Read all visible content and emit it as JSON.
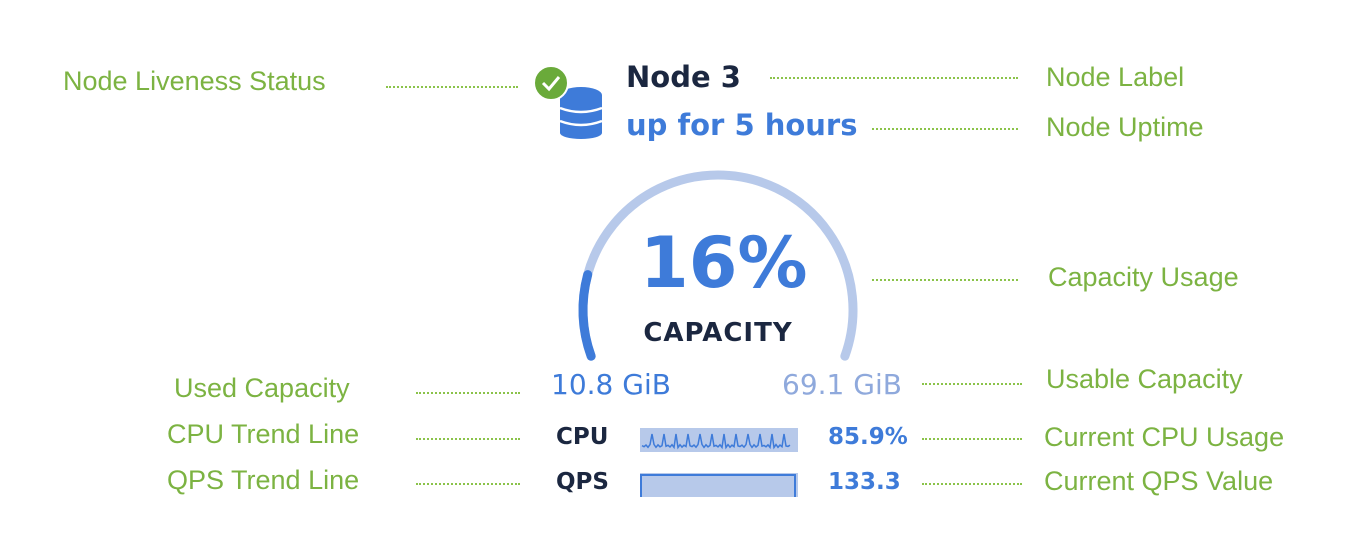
{
  "annotations": {
    "liveness": "Node Liveness Status",
    "label": "Node Label",
    "uptime": "Node Uptime",
    "capacity_usage": "Capacity Usage",
    "used_capacity": "Used Capacity",
    "usable_capacity": "Usable Capacity",
    "cpu_trend": "CPU Trend Line",
    "current_cpu": "Current CPU Usage",
    "qps_trend": "QPS Trend Line",
    "current_qps": "Current QPS Value"
  },
  "node": {
    "status_icon": "check-circle-icon",
    "icon": "database-icon",
    "label": "Node 3",
    "uptime": "up for 5 hours",
    "capacity_percent": "16%",
    "capacity_fraction": 0.16,
    "capacity_label": "CAPACITY",
    "used": "10.8 GiB",
    "usable": "69.1 GiB",
    "cpu_label": "CPU",
    "cpu_value": "85.9%",
    "qps_label": "QPS",
    "qps_value": "133.3"
  },
  "colors": {
    "annotation": "#7cb342",
    "accent": "#3e7bd9",
    "arc_track": "#b7c9ea",
    "status_ok": "#6aaa3a"
  }
}
